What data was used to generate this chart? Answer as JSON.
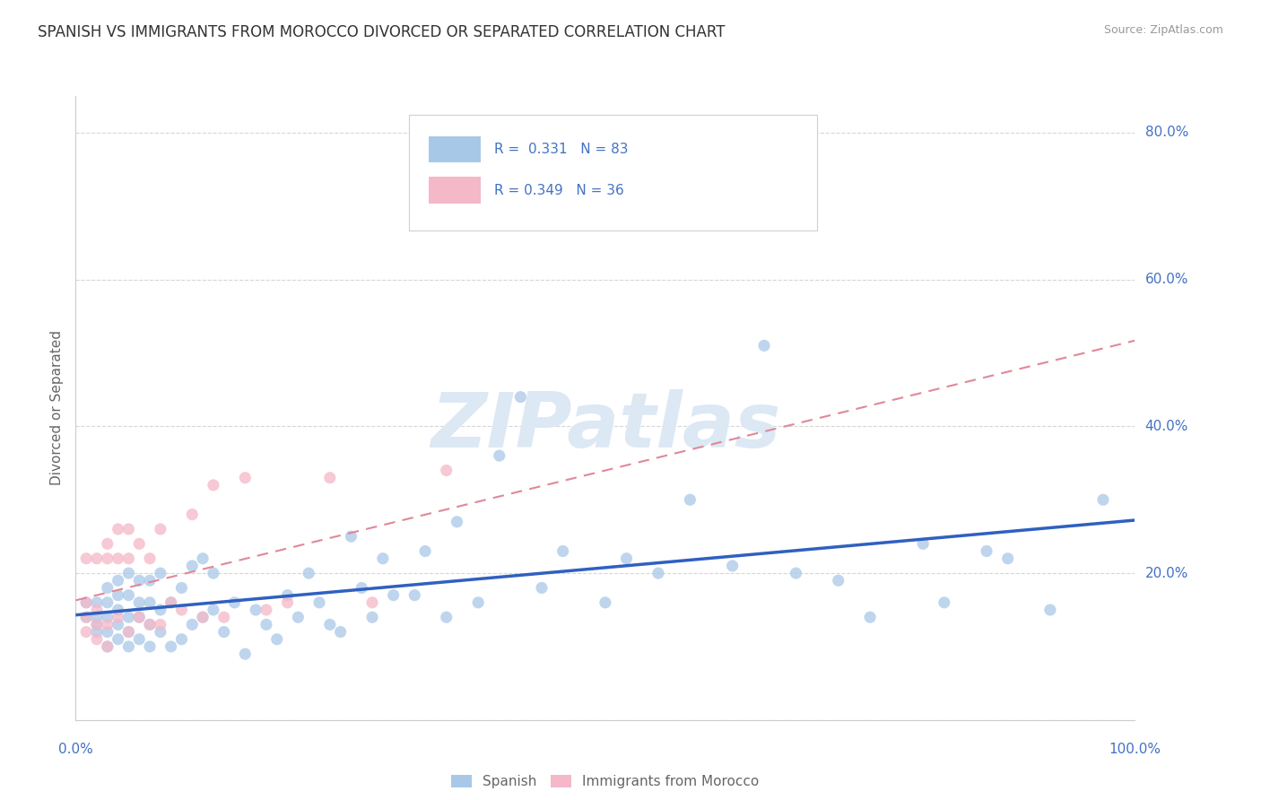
{
  "title": "SPANISH VS IMMIGRANTS FROM MOROCCO DIVORCED OR SEPARATED CORRELATION CHART",
  "source": "Source: ZipAtlas.com",
  "ylabel": "Divorced or Separated",
  "legend_labels": [
    "Spanish",
    "Immigrants from Morocco"
  ],
  "r_spanish": 0.331,
  "n_spanish": 83,
  "r_morocco": 0.349,
  "n_morocco": 36,
  "xlim": [
    0.0,
    1.0
  ],
  "ylim": [
    0.0,
    0.85
  ],
  "yticks": [
    0.0,
    0.2,
    0.4,
    0.6,
    0.8
  ],
  "ytick_labels": [
    "",
    "20.0%",
    "40.0%",
    "60.0%",
    "80.0%"
  ],
  "xtick_labels_left": "0.0%",
  "xtick_labels_right": "100.0%",
  "background_color": "#ffffff",
  "grid_color": "#cccccc",
  "spanish_dot_color": "#a8c8e8",
  "morocco_dot_color": "#f4b8c8",
  "trend_spanish_color": "#3060c0",
  "trend_morocco_color": "#e08898",
  "watermark_text": "ZIPatlas",
  "watermark_color": "#dce8f4",
  "title_fontsize": 12,
  "tick_label_color": "#4472c4",
  "axis_label_color": "#666666",
  "legend_box_color": "#e8e8e8",
  "spanish_scatter_x": [
    0.01,
    0.01,
    0.02,
    0.02,
    0.02,
    0.02,
    0.03,
    0.03,
    0.03,
    0.03,
    0.03,
    0.04,
    0.04,
    0.04,
    0.04,
    0.04,
    0.05,
    0.05,
    0.05,
    0.05,
    0.05,
    0.06,
    0.06,
    0.06,
    0.06,
    0.07,
    0.07,
    0.07,
    0.07,
    0.08,
    0.08,
    0.08,
    0.09,
    0.09,
    0.1,
    0.1,
    0.11,
    0.11,
    0.12,
    0.12,
    0.13,
    0.13,
    0.14,
    0.15,
    0.16,
    0.17,
    0.18,
    0.19,
    0.2,
    0.21,
    0.22,
    0.23,
    0.24,
    0.25,
    0.26,
    0.27,
    0.28,
    0.29,
    0.3,
    0.32,
    0.33,
    0.35,
    0.36,
    0.38,
    0.4,
    0.42,
    0.44,
    0.46,
    0.5,
    0.52,
    0.55,
    0.58,
    0.62,
    0.65,
    0.68,
    0.72,
    0.75,
    0.8,
    0.82,
    0.86,
    0.88,
    0.92,
    0.97
  ],
  "spanish_scatter_y": [
    0.14,
    0.16,
    0.12,
    0.13,
    0.14,
    0.16,
    0.1,
    0.12,
    0.14,
    0.16,
    0.18,
    0.11,
    0.13,
    0.15,
    0.17,
    0.19,
    0.1,
    0.12,
    0.14,
    0.17,
    0.2,
    0.11,
    0.14,
    0.16,
    0.19,
    0.1,
    0.13,
    0.16,
    0.19,
    0.12,
    0.15,
    0.2,
    0.1,
    0.16,
    0.11,
    0.18,
    0.13,
    0.21,
    0.14,
    0.22,
    0.15,
    0.2,
    0.12,
    0.16,
    0.09,
    0.15,
    0.13,
    0.11,
    0.17,
    0.14,
    0.2,
    0.16,
    0.13,
    0.12,
    0.25,
    0.18,
    0.14,
    0.22,
    0.17,
    0.17,
    0.23,
    0.14,
    0.27,
    0.16,
    0.36,
    0.44,
    0.18,
    0.23,
    0.16,
    0.22,
    0.2,
    0.3,
    0.21,
    0.51,
    0.2,
    0.19,
    0.14,
    0.24,
    0.16,
    0.23,
    0.22,
    0.15,
    0.3
  ],
  "morocco_scatter_x": [
    0.01,
    0.01,
    0.01,
    0.01,
    0.02,
    0.02,
    0.02,
    0.02,
    0.03,
    0.03,
    0.03,
    0.03,
    0.04,
    0.04,
    0.04,
    0.05,
    0.05,
    0.05,
    0.06,
    0.06,
    0.07,
    0.07,
    0.08,
    0.08,
    0.09,
    0.1,
    0.11,
    0.12,
    0.13,
    0.14,
    0.16,
    0.18,
    0.2,
    0.24,
    0.28,
    0.35
  ],
  "morocco_scatter_y": [
    0.12,
    0.14,
    0.16,
    0.22,
    0.11,
    0.13,
    0.15,
    0.22,
    0.1,
    0.13,
    0.22,
    0.24,
    0.14,
    0.22,
    0.26,
    0.12,
    0.22,
    0.26,
    0.14,
    0.24,
    0.13,
    0.22,
    0.13,
    0.26,
    0.16,
    0.15,
    0.28,
    0.14,
    0.32,
    0.14,
    0.33,
    0.15,
    0.16,
    0.33,
    0.16,
    0.34
  ]
}
